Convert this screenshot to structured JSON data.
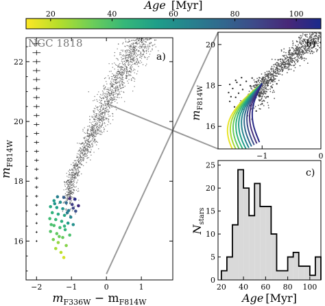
{
  "figure": {
    "colorbar": {
      "label_main": "Age",
      "label_unit": "[Myr]",
      "ticks": [
        20,
        40,
        60,
        80,
        100
      ],
      "range": [
        12,
        108
      ],
      "colormap": [
        "#fde725",
        "#b5de2b",
        "#6ece58",
        "#35b779",
        "#1f9e89",
        "#26828e",
        "#31688e",
        "#3e4989",
        "#482878",
        "#1a2a8c"
      ]
    },
    "box_color": "#999999"
  },
  "chart_data": [
    {
      "panel": "a)",
      "type": "scatter",
      "annotation": "NGC 1818",
      "xlabel_main": "m",
      "xlabel_sub1": "F336W",
      "xlabel_minus": " − m",
      "xlabel_sub2": "F814W",
      "ylabel_main": "m",
      "ylabel_sub": "F814W",
      "xlim": [
        -2.3,
        1.9
      ],
      "ylim": [
        22.8,
        14.7
      ],
      "xticks": [
        -2,
        -1,
        0,
        1
      ],
      "yticks": [
        16,
        18,
        20,
        22
      ],
      "inset_box": {
        "x": [
          -1.75,
          0.0
        ],
        "y": [
          14.9,
          20.6
        ]
      },
      "error_bar_x": -2.0,
      "error_bar_mags": [
        16.0,
        16.3,
        16.6,
        16.9,
        17.2,
        17.5,
        17.8,
        18.1,
        18.4,
        18.7,
        19.0,
        19.3,
        19.6,
        19.9,
        20.2,
        20.5,
        20.8,
        21.1,
        21.4,
        21.7,
        22.0,
        22.3,
        22.6
      ],
      "bright_stars": [
        {
          "x": -1.22,
          "y": 15.45,
          "age": 18
        },
        {
          "x": -1.3,
          "y": 15.62,
          "age": 22
        },
        {
          "x": -1.45,
          "y": 15.75,
          "age": 25
        },
        {
          "x": -1.15,
          "y": 15.85,
          "age": 30
        },
        {
          "x": -1.38,
          "y": 15.95,
          "age": 28
        },
        {
          "x": -1.52,
          "y": 16.05,
          "age": 32
        },
        {
          "x": -1.25,
          "y": 16.12,
          "age": 35
        },
        {
          "x": -1.05,
          "y": 16.2,
          "age": 40
        },
        {
          "x": -1.42,
          "y": 16.25,
          "age": 36
        },
        {
          "x": -1.6,
          "y": 16.32,
          "age": 38
        },
        {
          "x": -1.18,
          "y": 16.38,
          "age": 45
        },
        {
          "x": -1.33,
          "y": 16.45,
          "age": 42
        },
        {
          "x": -1.5,
          "y": 16.52,
          "age": 40
        },
        {
          "x": -0.95,
          "y": 16.55,
          "age": 60
        },
        {
          "x": -1.1,
          "y": 16.6,
          "age": 55
        },
        {
          "x": -1.28,
          "y": 16.66,
          "age": 48
        },
        {
          "x": -1.45,
          "y": 16.72,
          "age": 44
        },
        {
          "x": -1.62,
          "y": 16.75,
          "age": 42
        },
        {
          "x": -1.02,
          "y": 16.8,
          "age": 65
        },
        {
          "x": -1.2,
          "y": 16.86,
          "age": 52
        },
        {
          "x": -1.38,
          "y": 16.9,
          "age": 50
        },
        {
          "x": -1.55,
          "y": 16.95,
          "age": 46
        },
        {
          "x": -0.88,
          "y": 17.0,
          "age": 85
        },
        {
          "x": -1.08,
          "y": 17.02,
          "age": 70
        },
        {
          "x": -1.25,
          "y": 17.08,
          "age": 58
        },
        {
          "x": -1.42,
          "y": 17.12,
          "age": 54
        },
        {
          "x": -1.6,
          "y": 17.15,
          "age": 50
        },
        {
          "x": -0.8,
          "y": 17.18,
          "age": 100
        },
        {
          "x": -0.98,
          "y": 17.22,
          "age": 90
        },
        {
          "x": -1.15,
          "y": 17.28,
          "age": 75
        },
        {
          "x": -1.32,
          "y": 17.3,
          "age": 62
        },
        {
          "x": -1.5,
          "y": 17.35,
          "age": 56
        },
        {
          "x": -0.9,
          "y": 17.4,
          "age": 105
        },
        {
          "x": -1.05,
          "y": 17.42,
          "age": 95
        },
        {
          "x": -1.22,
          "y": 17.46,
          "age": 80
        },
        {
          "x": -1.4,
          "y": 17.48,
          "age": 66
        },
        {
          "x": -1.58,
          "y": 16.55,
          "age": 40
        },
        {
          "x": -1.35,
          "y": 16.15,
          "age": 34
        },
        {
          "x": -1.12,
          "y": 16.95,
          "age": 68
        },
        {
          "x": -1.48,
          "y": 17.25,
          "age": 58
        },
        {
          "x": -0.95,
          "y": 17.1,
          "age": 88
        },
        {
          "x": -1.2,
          "y": 16.5,
          "age": 46
        }
      ]
    },
    {
      "panel": "b)",
      "type": "line",
      "ylabel_main": "m",
      "ylabel_sub": "F814W",
      "xlim": [
        -1.75,
        0.0
      ],
      "ylim": [
        20.6,
        14.9
      ],
      "xticks": [
        -1,
        0
      ],
      "yticks": [
        16,
        18,
        20
      ],
      "track_ages": [
        15,
        25,
        35,
        45,
        55,
        65,
        75,
        85,
        95,
        105
      ]
    },
    {
      "panel": "c)",
      "type": "bar",
      "xlabel_main": "Age",
      "xlabel_unit": "[Myr]",
      "ylabel_main": "N",
      "ylabel_sub": "stars",
      "xlim": [
        17,
        110
      ],
      "ylim": [
        0,
        26
      ],
      "xticks": [
        20,
        40,
        60,
        80,
        100
      ],
      "bin_edges": [
        20,
        25,
        30,
        35,
        40,
        45,
        50,
        55,
        60,
        65,
        70,
        75,
        80,
        85,
        90,
        95,
        100,
        105,
        110
      ],
      "counts": [
        2,
        5,
        12,
        24,
        20,
        14,
        21,
        16,
        16,
        10,
        2,
        2,
        5,
        6,
        3,
        3,
        1,
        5
      ]
    }
  ]
}
